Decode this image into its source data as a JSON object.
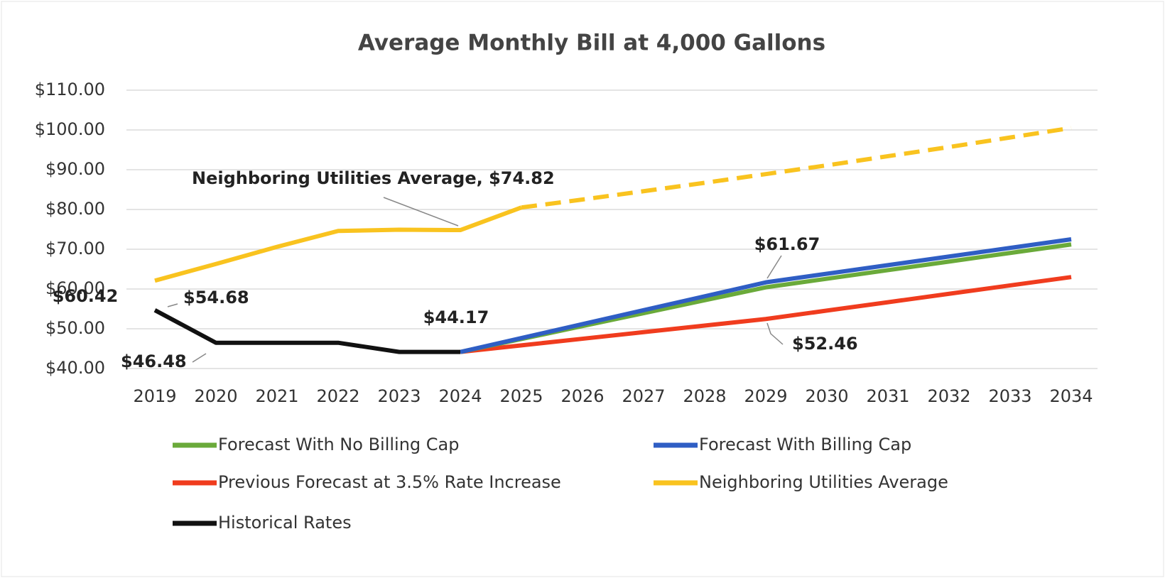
{
  "chart_data": {
    "type": "line",
    "title": "Average Monthly Bill at 4,000 Gallons",
    "categories": [
      "2019",
      "2020",
      "2021",
      "2022",
      "2023",
      "2024",
      "2025",
      "2026",
      "2027",
      "2028",
      "2029",
      "2030",
      "2031",
      "2032",
      "2033",
      "2034"
    ],
    "series": [
      {
        "name": "Forecast With No Billing Cap",
        "color": "#6aaa3a",
        "values": [
          null,
          null,
          null,
          null,
          null,
          44.17,
          47.42,
          50.67,
          53.92,
          57.17,
          60.42,
          62.58,
          64.74,
          66.9,
          69.06,
          71.2
        ],
        "value_labels": [
          null,
          null,
          null,
          null,
          null,
          null,
          null,
          null,
          null,
          null,
          "$60.42",
          null,
          null,
          null,
          null,
          null
        ]
      },
      {
        "name": "Forecast With Billing Cap",
        "color": "#2f5ec4",
        "values": [
          null,
          null,
          null,
          null,
          null,
          44.17,
          47.67,
          51.17,
          54.67,
          58.17,
          61.67,
          63.84,
          66.0,
          68.17,
          70.34,
          72.5
        ],
        "value_labels": [
          null,
          null,
          null,
          null,
          null,
          null,
          null,
          null,
          null,
          null,
          "$61.67",
          null,
          null,
          null,
          null,
          null
        ]
      },
      {
        "name": "Previous Forecast at 3.5% Rate Increase",
        "color": "#f03c1e",
        "values": [
          null,
          null,
          null,
          null,
          null,
          44.17,
          45.83,
          47.49,
          49.15,
          50.8,
          52.46,
          54.57,
          56.68,
          58.79,
          60.9,
          63.0
        ],
        "value_labels": [
          null,
          null,
          null,
          null,
          null,
          null,
          null,
          null,
          null,
          null,
          "$52.46",
          null,
          null,
          null,
          null,
          null
        ]
      },
      {
        "name": "Neighboring Utilities Average",
        "color": "#f9c31f",
        "dashed_from": 6,
        "values": [
          62.1,
          66.3,
          70.6,
          74.6,
          74.9,
          74.82,
          80.5,
          82.5,
          84.6,
          86.7,
          88.9,
          91.1,
          93.4,
          95.7,
          98.1,
          100.5
        ],
        "value_labels": [
          null,
          null,
          null,
          null,
          null,
          "Neighboring Utilities Average, $74.82",
          null,
          null,
          null,
          null,
          null,
          null,
          null,
          null,
          null,
          null
        ]
      },
      {
        "name": "Historical Rates",
        "color": "#111111",
        "values": [
          54.68,
          46.48,
          46.48,
          46.48,
          44.17,
          44.17,
          null,
          null,
          null,
          null,
          null,
          null,
          null,
          null,
          null,
          null
        ],
        "value_labels": [
          "$54.68",
          "$46.48",
          null,
          null,
          null,
          "$44.17",
          null,
          null,
          null,
          null,
          null,
          null,
          null,
          null,
          null,
          null
        ]
      }
    ],
    "ylim": [
      40,
      110
    ],
    "yticks": [
      {
        "value": 40,
        "label": "$40.00"
      },
      {
        "value": 50,
        "label": "$50.00"
      },
      {
        "value": 60,
        "label": "$60.00"
      },
      {
        "value": 70,
        "label": "$70.00"
      },
      {
        "value": 80,
        "label": "$80.00"
      },
      {
        "value": 90,
        "label": "$90.00"
      },
      {
        "value": 100,
        "label": "$100.00"
      },
      {
        "value": 110,
        "label": "$110.00"
      }
    ],
    "grid": true,
    "legend": "bottom"
  }
}
